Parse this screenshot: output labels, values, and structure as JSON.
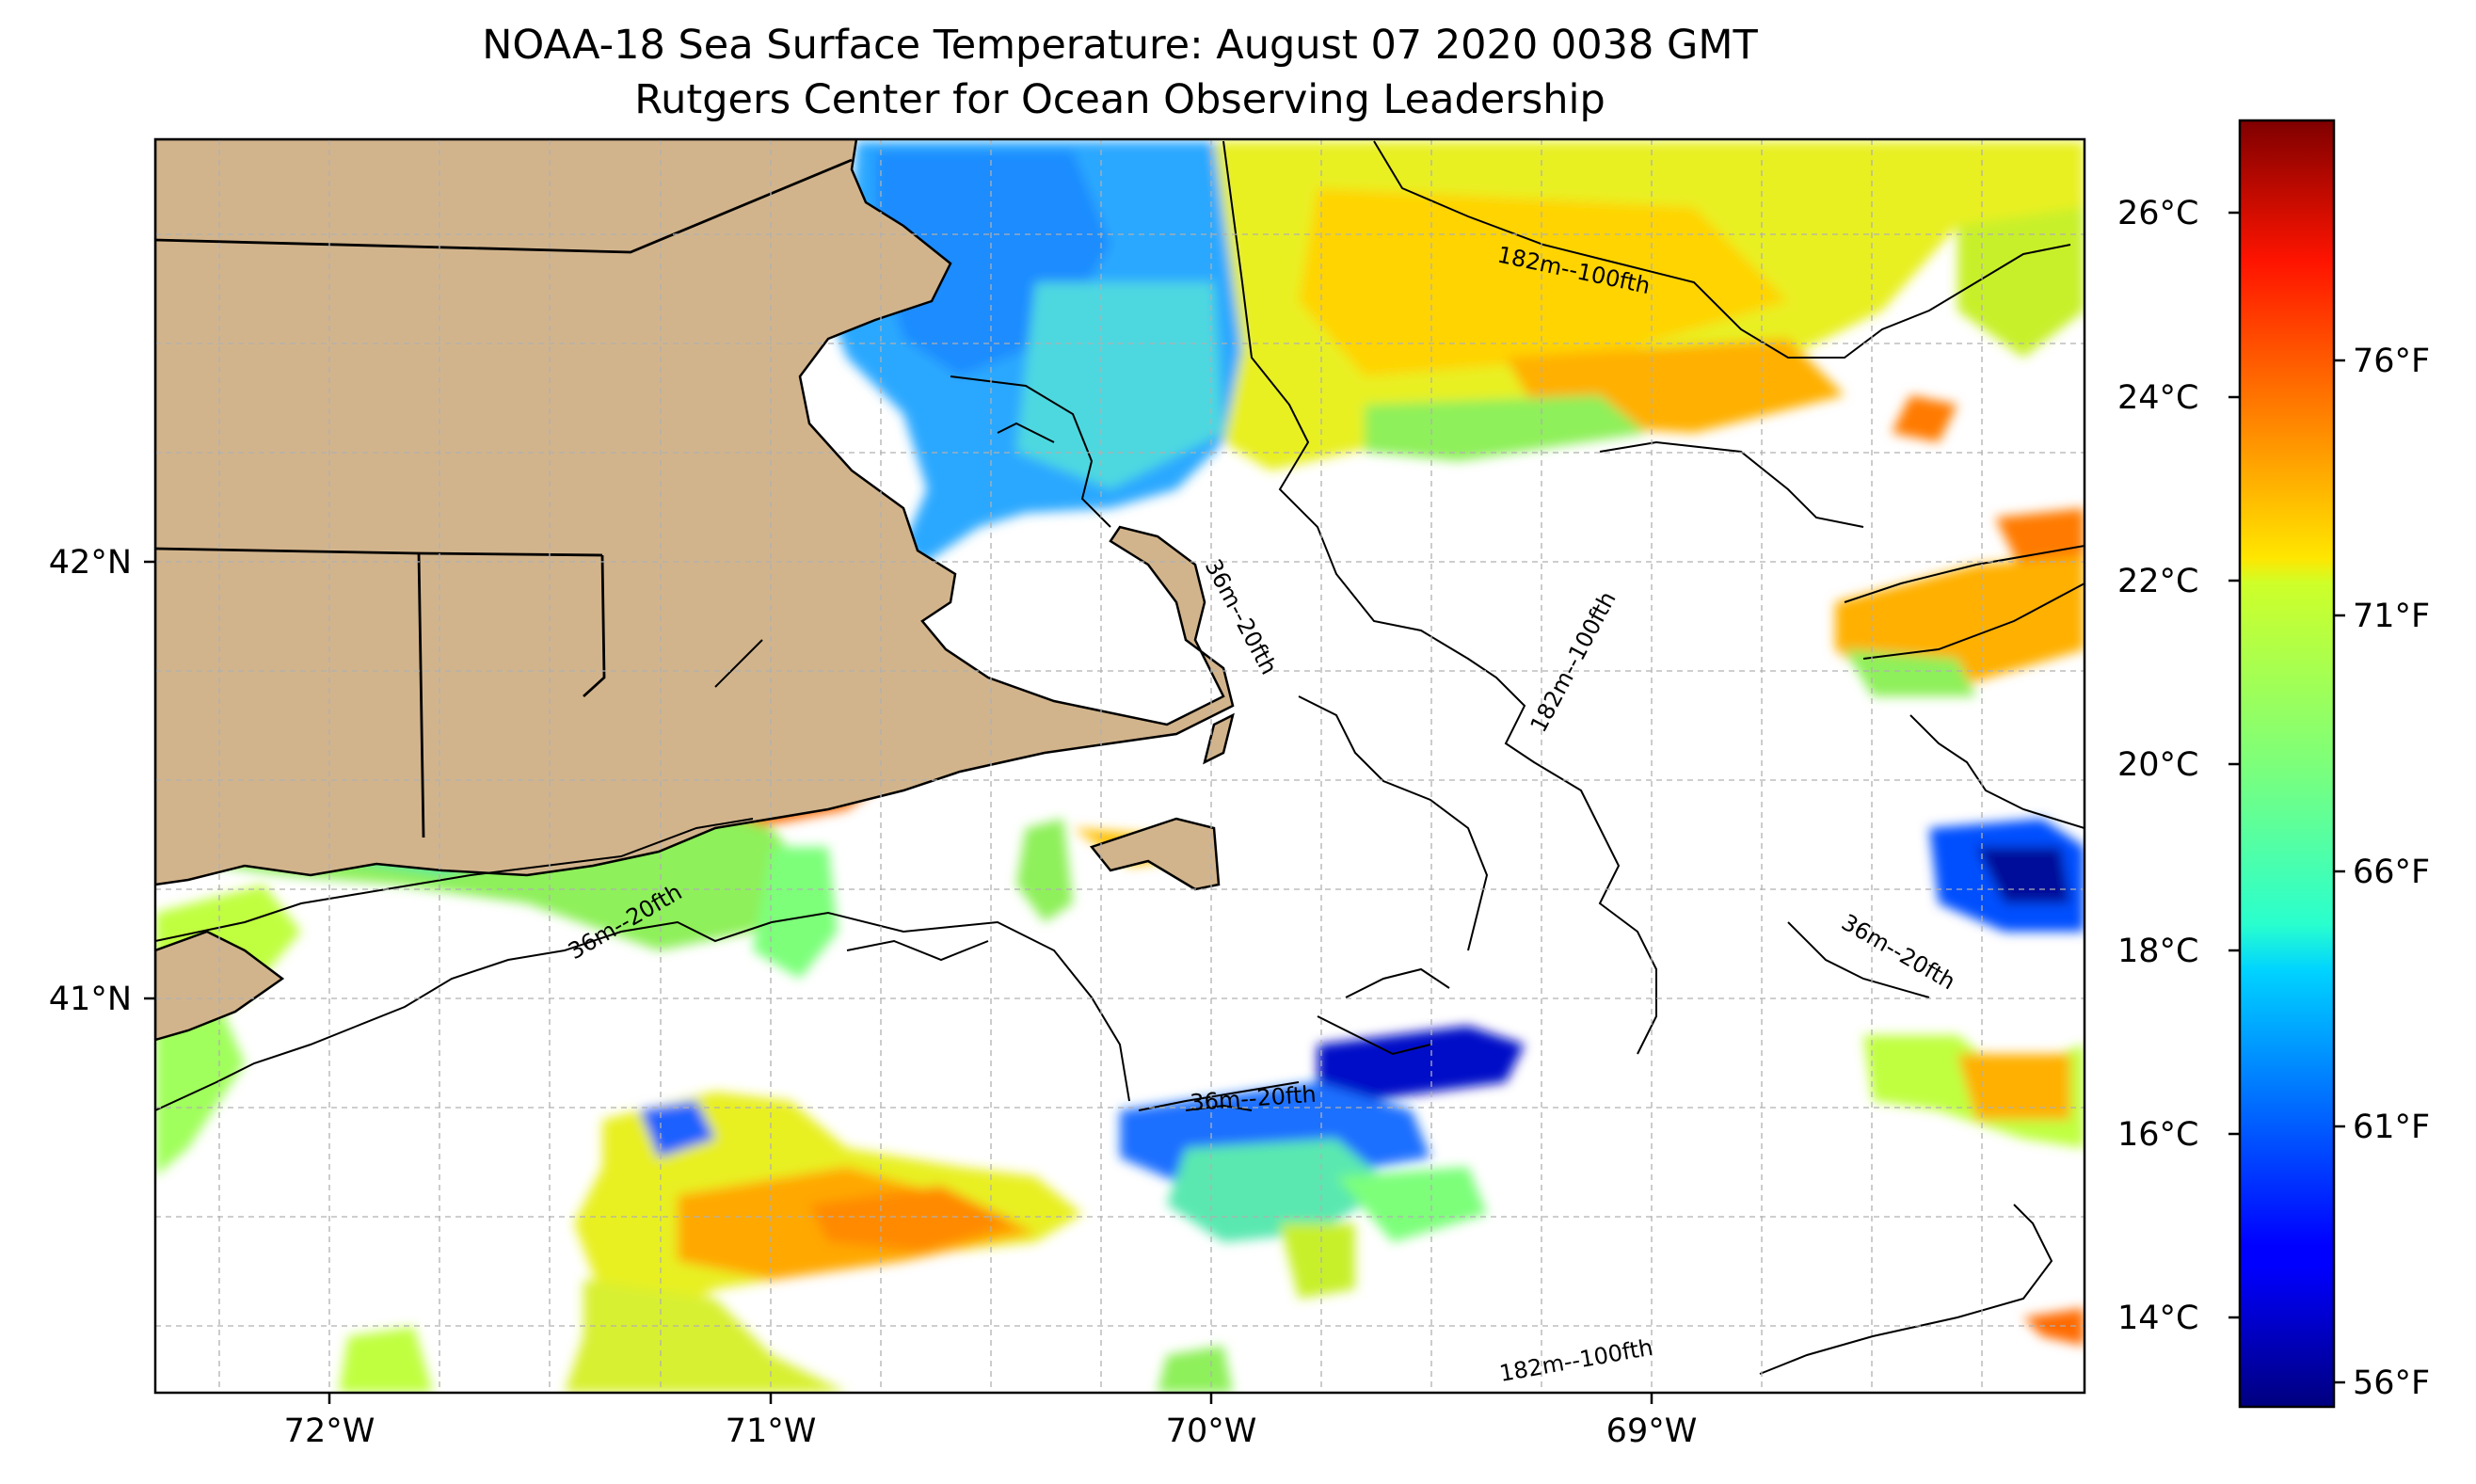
{
  "title": "NOAA-18 Sea Surface Temperature: August 07 2020 0038 GMT",
  "subtitle": "Rutgers Center for Ocean Observing Leadership",
  "lon_labels": [
    "72°W",
    "71°W",
    "70°W",
    "69°W"
  ],
  "lat_labels": [
    "42°N",
    "41°N"
  ],
  "contour_labels": {
    "c1": "182m--100fth",
    "c2": "36m--20fth",
    "c3": "182m--100fth",
    "c4": "36m--20fth",
    "c5": "36m--20fth",
    "c6": "36m--20fth",
    "c7": "182m--100fth"
  },
  "colorbar": {
    "celsius": [
      "26°C",
      "24°C",
      "22°C",
      "20°C",
      "18°C",
      "16°C",
      "14°C"
    ],
    "fahrenheit": [
      "76°F",
      "71°F",
      "66°F",
      "61°F",
      "56°F"
    ],
    "colormap": "jet",
    "range_celsius": [
      13.0,
      27.0
    ]
  },
  "colors": {
    "land": "#d2b48c",
    "ocean_nodata": "#ffffff",
    "coastline": "#000000",
    "grid": "#b0b0b0"
  }
}
